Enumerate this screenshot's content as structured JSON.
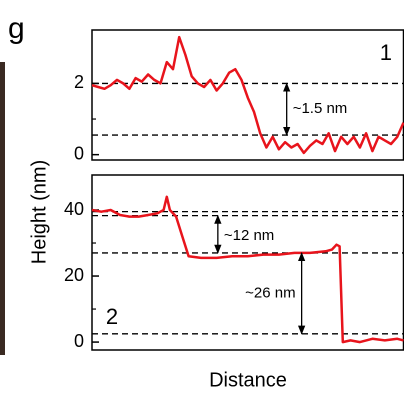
{
  "panel_label": "g",
  "ylabel": "Height (nm)",
  "xlabel": "Distance",
  "chart_data": [
    {
      "type": "line",
      "label": "1",
      "x": [
        0,
        2,
        4,
        6,
        8,
        10,
        12,
        14,
        16,
        18,
        20,
        22,
        24,
        26,
        28,
        30,
        32,
        34,
        36,
        38,
        40,
        42,
        44,
        46,
        48,
        50,
        52,
        54,
        56,
        58,
        60,
        62,
        64,
        66,
        68,
        70,
        72,
        74,
        76,
        78,
        80,
        82,
        84,
        86,
        88,
        90,
        92,
        94,
        96,
        98,
        100
      ],
      "series": [
        {
          "color": "#e8141c",
          "values": [
            1.95,
            1.9,
            1.85,
            1.95,
            2.1,
            2.0,
            1.85,
            2.15,
            2.05,
            2.25,
            2.1,
            2.0,
            2.6,
            2.4,
            3.3,
            2.8,
            2.2,
            2.0,
            1.9,
            2.1,
            1.8,
            2.0,
            2.3,
            2.4,
            2.1,
            1.6,
            1.2,
            0.6,
            0.2,
            0.5,
            0.15,
            0.35,
            0.2,
            0.3,
            0.05,
            0.25,
            0.4,
            0.3,
            0.6,
            0.1,
            0.5,
            0.3,
            0.5,
            0.2,
            0.6,
            0.1,
            0.5,
            0.4,
            0.3,
            0.5,
            0.9
          ]
        }
      ],
      "xlim": [
        0,
        100
      ],
      "ylim": [
        -0.15,
        3.5
      ],
      "yticks": [
        0,
        2
      ],
      "minor_yticks": [
        1
      ],
      "reference_lines": [
        2,
        0.55
      ],
      "annotations": [
        {
          "text": "~1.5 nm",
          "x": 62.5,
          "y_from": 2,
          "y_to": 0.55
        }
      ]
    },
    {
      "type": "line",
      "label": "2",
      "x": [
        0,
        3,
        6,
        9,
        12,
        15,
        18,
        21,
        23,
        24,
        25,
        27,
        29,
        31,
        35,
        40,
        45,
        50,
        55,
        60,
        65,
        70,
        75,
        77,
        78.5,
        79.5,
        80.5,
        83,
        86,
        90,
        94,
        98,
        100
      ],
      "series": [
        {
          "color": "#e8141c",
          "values": [
            40,
            39.5,
            40,
            38.5,
            38,
            38,
            38.5,
            39,
            40,
            44,
            40,
            38,
            32,
            26,
            25.5,
            25.5,
            26,
            26,
            26.5,
            26.5,
            27,
            27,
            27.5,
            28,
            29.5,
            29,
            0,
            0.5,
            0,
            1,
            0.5,
            1,
            0.5
          ]
        }
      ],
      "xlim": [
        0,
        100
      ],
      "ylim": [
        -2.4,
        50.6
      ],
      "yticks": [
        0,
        20,
        40
      ],
      "minor_yticks": [
        10,
        30
      ],
      "reference_lines": [
        39.5,
        38.3,
        27,
        2.5
      ],
      "annotations": [
        {
          "text": "~12 nm",
          "x": 40.4,
          "y_from": 38.3,
          "y_to": 27
        },
        {
          "text": "~26 nm",
          "x": 67.3,
          "y_from": 27,
          "y_to": 2.5
        }
      ]
    }
  ]
}
